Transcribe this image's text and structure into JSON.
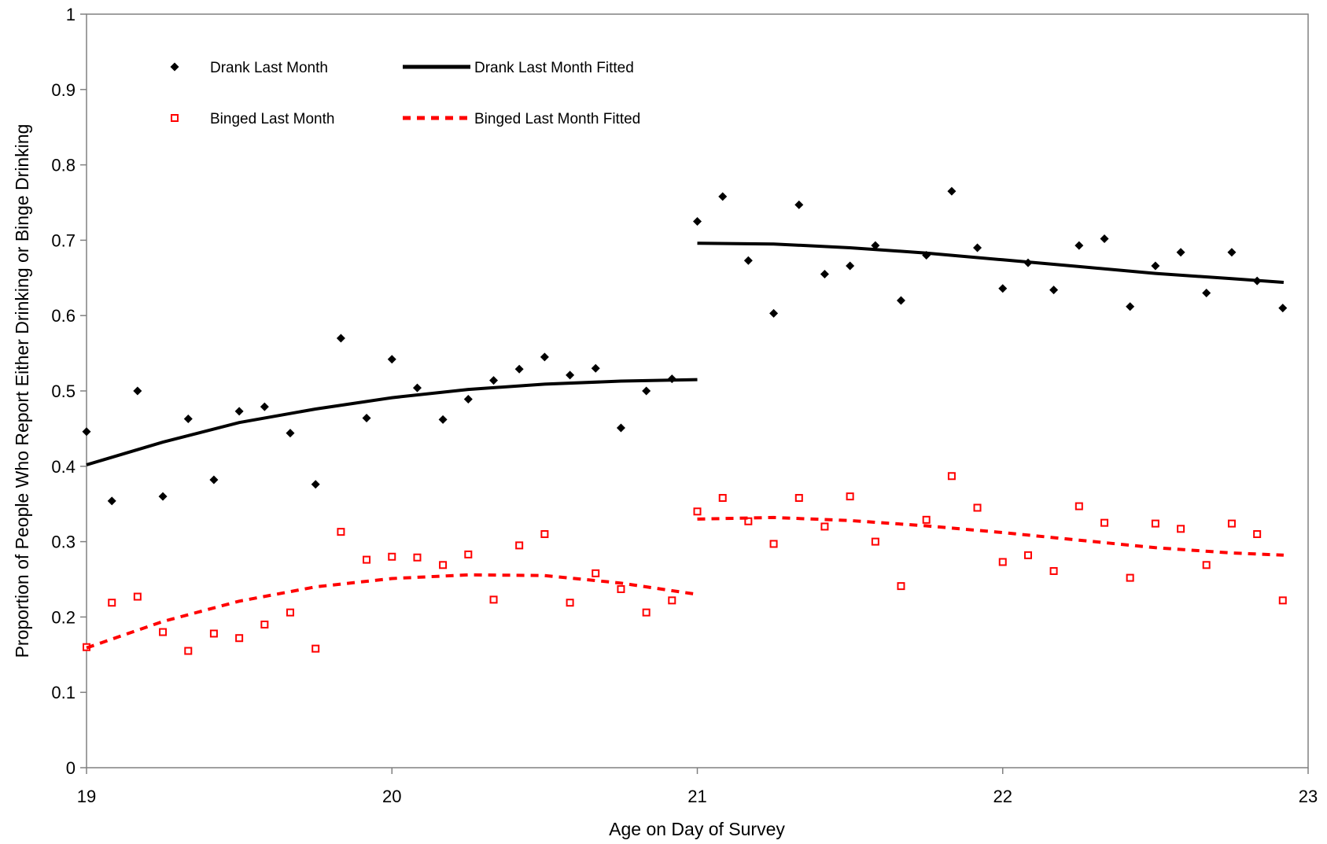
{
  "chart_data": {
    "type": "scatter",
    "title": "",
    "xlabel": "Age on Day of Survey",
    "ylabel": "Proportion of People Who Report Either Drinking or Binge Drinking",
    "xlim": [
      19,
      23
    ],
    "ylim": [
      0,
      1
    ],
    "x_ticks": [
      "19",
      "20",
      "21",
      "22",
      "23"
    ],
    "y_ticks": [
      "0",
      "0.1",
      "0.2",
      "0.3",
      "0.4",
      "0.5",
      "0.6",
      "0.7",
      "0.8",
      "0.9",
      "1"
    ],
    "grid": false,
    "legend_position": "top-left",
    "colors": {
      "drank": "#000000",
      "binged": "#ff0000",
      "axis": "#808080"
    },
    "series": [
      {
        "name": "Drank Last Month",
        "kind": "points",
        "marker": "diamond",
        "x": [
          19.0,
          19.083,
          19.167,
          19.25,
          19.333,
          19.417,
          19.5,
          19.583,
          19.667,
          19.75,
          19.833,
          19.917,
          20.0,
          20.083,
          20.167,
          20.25,
          20.333,
          20.417,
          20.5,
          20.583,
          20.667,
          20.75,
          20.833,
          20.917,
          21.0,
          21.083,
          21.167,
          21.25,
          21.333,
          21.417,
          21.5,
          21.583,
          21.667,
          21.75,
          21.833,
          21.917,
          22.0,
          22.083,
          22.167,
          22.25,
          22.333,
          22.417,
          22.5,
          22.583,
          22.667,
          22.75,
          22.833,
          22.917
        ],
        "y": [
          0.446,
          0.354,
          0.5,
          0.36,
          0.463,
          0.382,
          0.473,
          0.479,
          0.444,
          0.376,
          0.57,
          0.464,
          0.542,
          0.504,
          0.462,
          0.489,
          0.514,
          0.529,
          0.545,
          0.521,
          0.53,
          0.451,
          0.5,
          0.516,
          0.725,
          0.758,
          0.673,
          0.603,
          0.747,
          0.655,
          0.666,
          0.693,
          0.62,
          0.68,
          0.765,
          0.69,
          0.636,
          0.67,
          0.634,
          0.693,
          0.702,
          0.612,
          0.666,
          0.684,
          0.63,
          0.684,
          0.646,
          0.61
        ]
      },
      {
        "name": "Drank Last Month Fitted",
        "kind": "line",
        "dash": "solid",
        "segments": [
          {
            "x": [
              19.0,
              19.25,
              19.5,
              19.75,
              20.0,
              20.25,
              20.5,
              20.75,
              21.0
            ],
            "y": [
              0.402,
              0.432,
              0.458,
              0.476,
              0.491,
              0.502,
              0.509,
              0.513,
              0.515
            ]
          },
          {
            "x": [
              21.0,
              21.25,
              21.5,
              21.75,
              22.0,
              22.25,
              22.5,
              22.75,
              22.92
            ],
            "y": [
              0.696,
              0.695,
              0.69,
              0.683,
              0.674,
              0.665,
              0.656,
              0.649,
              0.644
            ]
          }
        ]
      },
      {
        "name": "Binged Last Month",
        "kind": "points",
        "marker": "square",
        "x": [
          19.0,
          19.083,
          19.167,
          19.25,
          19.333,
          19.417,
          19.5,
          19.583,
          19.667,
          19.75,
          19.833,
          19.917,
          20.0,
          20.083,
          20.167,
          20.25,
          20.333,
          20.417,
          20.5,
          20.583,
          20.667,
          20.75,
          20.833,
          20.917,
          21.0,
          21.083,
          21.167,
          21.25,
          21.333,
          21.417,
          21.5,
          21.583,
          21.667,
          21.75,
          21.833,
          21.917,
          22.0,
          22.083,
          22.167,
          22.25,
          22.333,
          22.417,
          22.5,
          22.583,
          22.667,
          22.75,
          22.833,
          22.917
        ],
        "y": [
          0.16,
          0.219,
          0.227,
          0.18,
          0.155,
          0.178,
          0.172,
          0.19,
          0.206,
          0.158,
          0.313,
          0.276,
          0.28,
          0.279,
          0.269,
          0.283,
          0.223,
          0.295,
          0.31,
          0.219,
          0.258,
          0.237,
          0.206,
          0.222,
          0.34,
          0.358,
          0.327,
          0.297,
          0.358,
          0.32,
          0.36,
          0.3,
          0.241,
          0.329,
          0.387,
          0.345,
          0.273,
          0.282,
          0.261,
          0.347,
          0.325,
          0.252,
          0.324,
          0.317,
          0.269,
          0.324,
          0.31,
          0.222
        ]
      },
      {
        "name": "Binged Last Month Fitted",
        "kind": "line",
        "dash": "dashed",
        "segments": [
          {
            "x": [
              19.0,
              19.25,
              19.5,
              19.75,
              20.0,
              20.25,
              20.5,
              20.75,
              21.0
            ],
            "y": [
              0.159,
              0.194,
              0.221,
              0.24,
              0.251,
              0.256,
              0.255,
              0.245,
              0.23
            ]
          },
          {
            "x": [
              21.0,
              21.25,
              21.5,
              21.75,
              22.0,
              22.25,
              22.5,
              22.75,
              22.92
            ],
            "y": [
              0.33,
              0.332,
              0.328,
              0.321,
              0.312,
              0.302,
              0.292,
              0.285,
              0.282
            ]
          }
        ]
      }
    ]
  }
}
